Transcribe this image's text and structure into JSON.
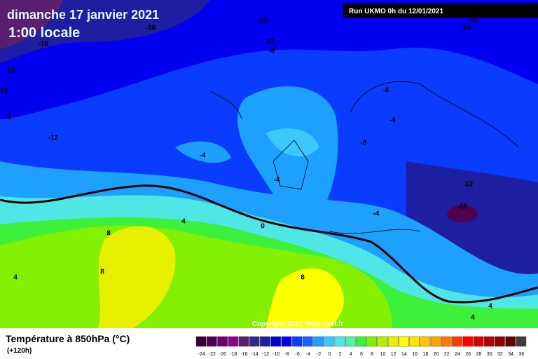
{
  "header": {
    "title": "dimanche 17 janvier 2021",
    "subtitle": "1:00 locale",
    "run": "Run UKMO 0h du 12/01/2021"
  },
  "map": {
    "contour_labels": [
      "-16",
      "-12",
      "-16",
      "-12",
      "-8",
      "-16",
      "12",
      "-8",
      "-12",
      "-8",
      "-4",
      "-8",
      "-4",
      "-4",
      "-12",
      "-16",
      "-4",
      "4",
      "0",
      "8",
      "8",
      "4",
      "8",
      "4",
      "4",
      "-20",
      "-16"
    ],
    "copyright": "Copyright 2021 Meteociel.fr"
  },
  "legend": {
    "title": "Température à 850hPa (°C)",
    "lead": "(+120h)",
    "scale": [
      {
        "value": -24,
        "color": "#320032"
      },
      {
        "value": -22,
        "color": "#500050"
      },
      {
        "value": -20,
        "color": "#6e006e"
      },
      {
        "value": -18,
        "color": "#8c008c"
      },
      {
        "value": -16,
        "color": "#5a1e6e"
      },
      {
        "value": -14,
        "color": "#32288c"
      },
      {
        "value": -12,
        "color": "#1e1ea0"
      },
      {
        "value": -10,
        "color": "#0000c8"
      },
      {
        "value": -8,
        "color": "#0000f0"
      },
      {
        "value": -6,
        "color": "#0a3cff"
      },
      {
        "value": -4,
        "color": "#1464ff"
      },
      {
        "value": -2,
        "color": "#1ea0ff"
      },
      {
        "value": 0,
        "color": "#3cc8ff"
      },
      {
        "value": 2,
        "color": "#50e6e6"
      },
      {
        "value": 4,
        "color": "#50f0a0"
      },
      {
        "value": 6,
        "color": "#3cf03c"
      },
      {
        "value": 8,
        "color": "#82f000"
      },
      {
        "value": 10,
        "color": "#b4f000"
      },
      {
        "value": 12,
        "color": "#e6f000"
      },
      {
        "value": 14,
        "color": "#ffff00"
      },
      {
        "value": 16,
        "color": "#ffe600"
      },
      {
        "value": 18,
        "color": "#ffc800"
      },
      {
        "value": 20,
        "color": "#ffa000"
      },
      {
        "value": 22,
        "color": "#ff7800"
      },
      {
        "value": 24,
        "color": "#ff3c00"
      },
      {
        "value": 26,
        "color": "#ff0000"
      },
      {
        "value": 28,
        "color": "#dc0000"
      },
      {
        "value": 30,
        "color": "#b40000"
      },
      {
        "value": 32,
        "color": "#8c0000"
      },
      {
        "value": 34,
        "color": "#640000"
      },
      {
        "value": 36,
        "color": "#3c3c3c"
      }
    ]
  }
}
